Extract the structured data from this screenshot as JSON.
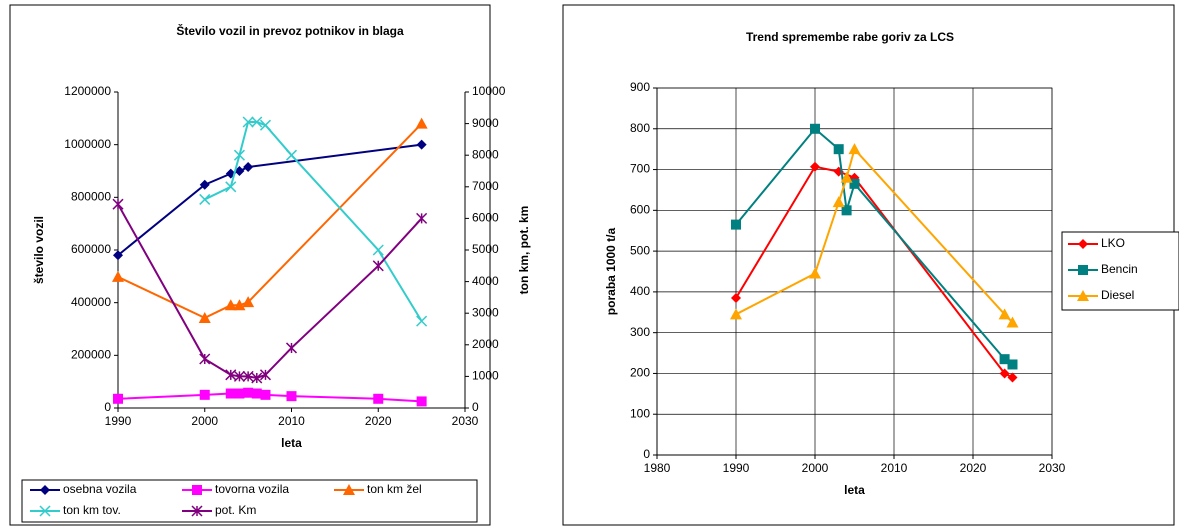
{
  "chart_data": [
    {
      "type": "line",
      "title": "Število vozil in prevoz potnikov in blaga",
      "xlabel": "leta",
      "ylabel": "število vozil",
      "y2label": "ton km, pot. km",
      "xlim": [
        1990,
        2030
      ],
      "xticks": [
        1990,
        2000,
        2010,
        2020,
        2030
      ],
      "ylim": [
        0,
        1200000
      ],
      "yticks": [
        0,
        200000,
        400000,
        600000,
        800000,
        1000000,
        1200000
      ],
      "y2lim": [
        0,
        10000
      ],
      "y2ticks": [
        0,
        1000,
        2000,
        3000,
        4000,
        5000,
        6000,
        7000,
        8000,
        9000,
        10000
      ],
      "legend": "bottom",
      "grid": false,
      "series": [
        {
          "name": "osebna vozila",
          "color": "#000080",
          "marker": "diamond",
          "x": [
            1990,
            2000,
            2003,
            2004,
            2005,
            2025
          ],
          "values": [
            580000,
            848000,
            890000,
            900000,
            915000,
            1000000
          ]
        },
        {
          "name": "tovorna vozila",
          "color": "#ff00ff",
          "marker": "square",
          "x": [
            1990,
            2000,
            2003,
            2004,
            2005,
            2006,
            2007,
            2010,
            2020,
            2025
          ],
          "values": [
            35000,
            50000,
            55000,
            55000,
            58000,
            55000,
            50000,
            45000,
            35000,
            25000
          ]
        },
        {
          "name": "ton km žel",
          "color": "#ff6600",
          "marker": "triangle",
          "axis": "y2",
          "x": [
            1990,
            2000,
            2003,
            2004,
            2005,
            2025
          ],
          "values": [
            4150,
            2850,
            3250,
            3250,
            3350,
            9000
          ]
        },
        {
          "name": "ton km tov.",
          "color": "#33cccc",
          "marker": "x",
          "axis": "y2",
          "x": [
            2000,
            2003,
            2004,
            2005,
            2006,
            2007,
            2010,
            2020,
            2025
          ],
          "values": [
            6600,
            7000,
            8000,
            9050,
            9050,
            8950,
            8000,
            5000,
            2750
          ]
        },
        {
          "name": "pot. Km",
          "color": "#800080",
          "marker": "star",
          "axis": "y2",
          "x": [
            1990,
            2000,
            2003,
            2004,
            2005,
            2006,
            2007,
            2010,
            2020,
            2025
          ],
          "values": [
            6450,
            1550,
            1050,
            1000,
            1000,
            950,
            1050,
            1900,
            4500,
            6000
          ]
        }
      ]
    },
    {
      "type": "line",
      "title": "Trend spremembe rabe goriv za LCS",
      "xlabel": "leta",
      "ylabel": "poraba 1000 t/a",
      "xlim": [
        1980,
        2030
      ],
      "xticks": [
        1980,
        1990,
        2000,
        2010,
        2020,
        2030
      ],
      "ylim": [
        0,
        900
      ],
      "yticks": [
        0,
        100,
        200,
        300,
        400,
        500,
        600,
        700,
        800,
        900
      ],
      "legend": "right",
      "grid": true,
      "series": [
        {
          "name": "LKO",
          "color": "#ff0000",
          "marker": "diamond",
          "x": [
            1990,
            2000,
            2003,
            2005,
            2024,
            2025
          ],
          "values": [
            385,
            707,
            695,
            680,
            200,
            190
          ]
        },
        {
          "name": "Bencin",
          "color": "#008080",
          "marker": "square",
          "x": [
            1990,
            2000,
            2003,
            2004,
            2005,
            2024,
            2025
          ],
          "values": [
            565,
            800,
            750,
            600,
            665,
            235,
            222
          ]
        },
        {
          "name": "Diesel",
          "color": "#ffa500",
          "marker": "triangle",
          "x": [
            1990,
            2000,
            2003,
            2004,
            2005,
            2024,
            2025
          ],
          "values": [
            345,
            445,
            620,
            680,
            750,
            345,
            325
          ]
        }
      ]
    }
  ]
}
